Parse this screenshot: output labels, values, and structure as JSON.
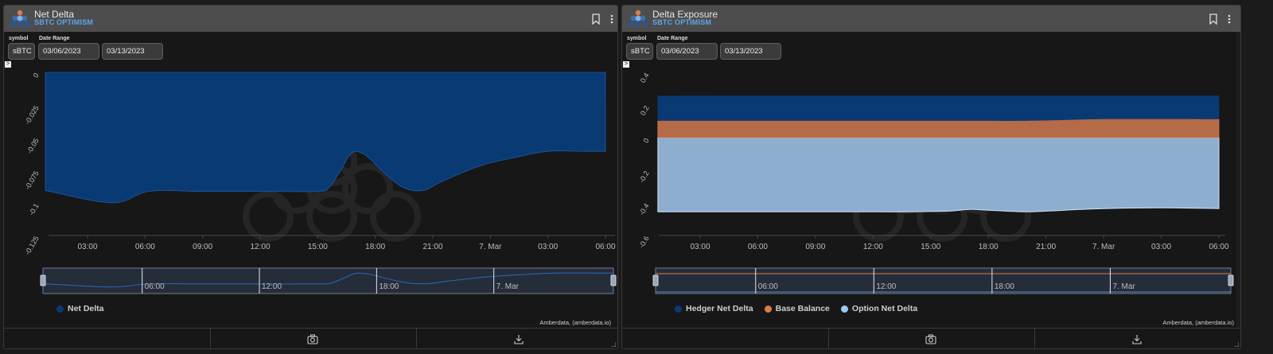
{
  "panels": [
    {
      "id": "net-delta",
      "title": "Net Delta",
      "subtitle": "SBTC OPTIMISM",
      "symbol_label": "symbol",
      "symbol_value": "sBTC",
      "date_range_label": "Date Range",
      "date_start": "03/06/2023",
      "date_end": "03/13/2023",
      "expand_label": ">",
      "legend": [
        {
          "name": "Net Delta",
          "color": "#0a3a73"
        }
      ],
      "credits": "Amberdata, (amberdata.io)"
    },
    {
      "id": "delta-exposure",
      "title": "Delta Exposure",
      "subtitle": "SBTC OPTIMISM",
      "symbol_label": "symbol",
      "symbol_value": "sBTC",
      "date_range_label": "Date Range",
      "date_start": "03/06/2023",
      "date_end": "03/13/2023",
      "expand_label": ">",
      "legend": [
        {
          "name": "Hedger Net Delta",
          "color": "#0a3a73"
        },
        {
          "name": "Base Balance",
          "color": "#e07b45"
        },
        {
          "name": "Option Net Delta",
          "color": "#9ccaf2"
        }
      ],
      "credits": "Amberdata, (amberdata.io)"
    }
  ],
  "chart_data": [
    {
      "type": "area",
      "title": "Net Delta",
      "xlabel": "",
      "ylabel": "",
      "x_ticks": [
        "03:00",
        "06:00",
        "09:00",
        "12:00",
        "15:00",
        "18:00",
        "21:00",
        "7. Mar",
        "03:00",
        "06:00"
      ],
      "navigator_ticks": [
        "06:00",
        "12:00",
        "18:00",
        "7. Mar"
      ],
      "y_ticks": [
        "0",
        "-0.025",
        "-0.05",
        "-0.075",
        "-0.1",
        "-0.125"
      ],
      "ylim": [
        -0.125,
        0
      ],
      "x_hours": [
        0.8,
        4.3,
        6.2,
        9,
        12,
        15,
        15.6,
        16.2,
        16.8,
        17.5,
        18.5,
        19.5,
        20.5,
        21.5,
        23.5,
        25.5,
        27,
        29,
        30
      ],
      "series": [
        {
          "name": "Net Delta",
          "color": "#0a3a73",
          "values": [
            -0.0905,
            -0.1,
            -0.0912,
            -0.0912,
            -0.0912,
            -0.0912,
            -0.088,
            -0.075,
            -0.0615,
            -0.0635,
            -0.0775,
            -0.0885,
            -0.0905,
            -0.0835,
            -0.0715,
            -0.0645,
            -0.0605,
            -0.0605,
            -0.0605
          ]
        }
      ]
    },
    {
      "type": "area",
      "title": "Delta Exposure",
      "xlabel": "",
      "ylabel": "",
      "stacked": true,
      "x_ticks": [
        "03:00",
        "06:00",
        "09:00",
        "12:00",
        "15:00",
        "18:00",
        "21:00",
        "7. Mar",
        "03:00",
        "06:00"
      ],
      "navigator_ticks": [
        "06:00",
        "12:00",
        "18:00",
        "7. Mar"
      ],
      "y_ticks": [
        "0.4",
        "0.2",
        "0",
        "-0.2",
        "-0.4",
        "-0.6"
      ],
      "ylim": [
        -0.6,
        0.4
      ],
      "x_hours": [
        0.8,
        6,
        12,
        14,
        16,
        17,
        18,
        20,
        22,
        24,
        27,
        30
      ],
      "series": [
        {
          "name": "Option Net Delta",
          "color": "#9ccaf2",
          "values": [
            -0.455,
            -0.455,
            -0.455,
            -0.455,
            -0.45,
            -0.44,
            -0.445,
            -0.455,
            -0.445,
            -0.435,
            -0.43,
            -0.435
          ]
        },
        {
          "name": "Base Balance",
          "color": "#e07b45",
          "values": [
            0.105,
            0.105,
            0.105,
            0.105,
            0.105,
            0.105,
            0.105,
            0.105,
            0.11,
            0.115,
            0.115,
            0.115
          ]
        },
        {
          "name": "Hedger Net Delta",
          "color": "#0a3a73",
          "values": [
            0.15,
            0.15,
            0.15,
            0.15,
            0.15,
            0.15,
            0.15,
            0.15,
            0.145,
            0.14,
            0.14,
            0.14
          ]
        }
      ]
    }
  ]
}
